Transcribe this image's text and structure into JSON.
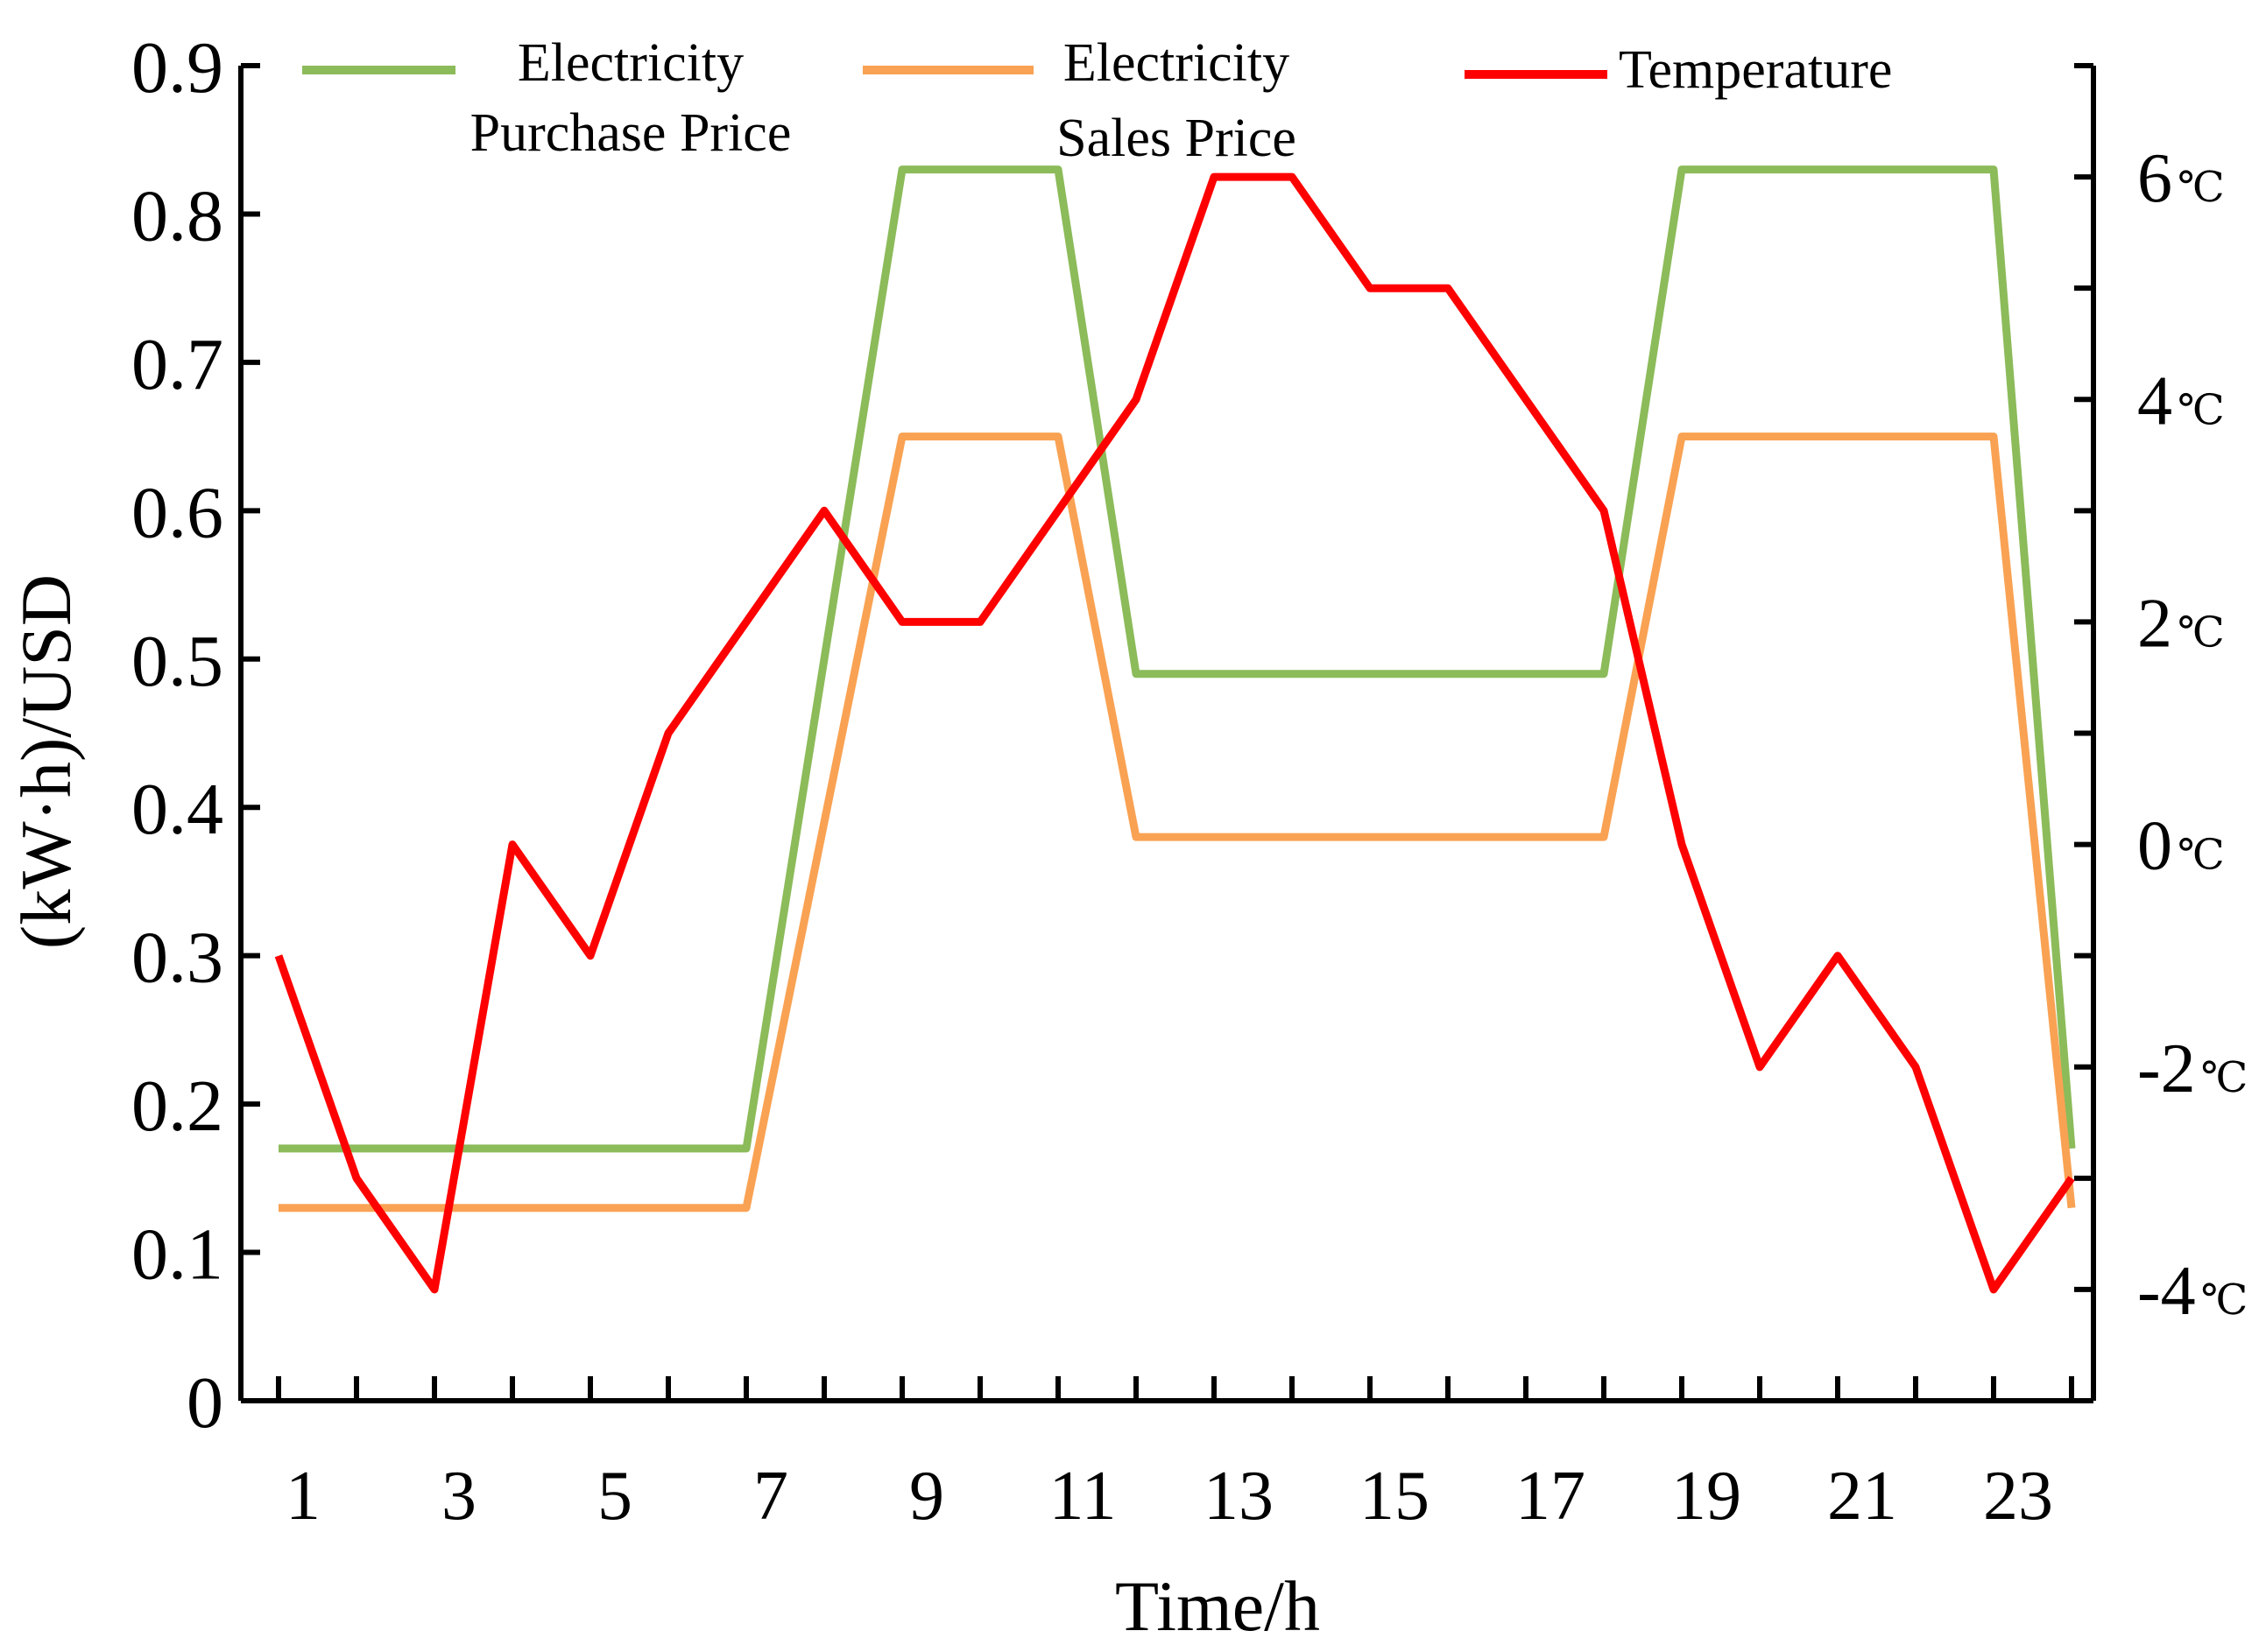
{
  "chart_data": {
    "type": "line",
    "title": "",
    "xlabel": "Time/h",
    "ylabel": "(kW·h)/USD",
    "x": [
      1,
      2,
      3,
      4,
      5,
      6,
      7,
      8,
      9,
      10,
      11,
      12,
      13,
      14,
      15,
      16,
      17,
      18,
      19,
      20,
      21,
      22,
      23,
      24
    ],
    "x_tick_labels": [
      "1",
      "3",
      "5",
      "7",
      "9",
      "11",
      "13",
      "15",
      "17",
      "19",
      "21",
      "23"
    ],
    "y_ticks": [
      "0",
      "0.1",
      "0.2",
      "0.3",
      "0.4",
      "0.5",
      "0.6",
      "0.7",
      "0.8",
      "0.9"
    ],
    "ylim": [
      0,
      0.9
    ],
    "y2_ticks": [
      "-4",
      "-2",
      "0",
      "2",
      "4",
      "6"
    ],
    "y2_unit": "℃",
    "y2lim": [
      -5,
      7
    ],
    "legend_position": "top",
    "series": [
      {
        "name": "Electricity Purchase Price",
        "legend_lines": [
          "Electricity",
          "Purchase Price"
        ],
        "axis": "left",
        "color": "#8CBB5A",
        "values": [
          0.17,
          0.17,
          0.17,
          0.17,
          0.17,
          0.17,
          0.17,
          0.5,
          0.83,
          0.83,
          0.83,
          0.49,
          0.49,
          0.49,
          0.49,
          0.49,
          0.49,
          0.49,
          0.83,
          0.83,
          0.83,
          0.83,
          0.83,
          0.17
        ]
      },
      {
        "name": "Electricity Sales Price",
        "legend_lines": [
          "Electricity",
          "Sales Price"
        ],
        "axis": "left",
        "color": "#F9A253",
        "values": [
          0.13,
          0.13,
          0.13,
          0.13,
          0.13,
          0.13,
          0.13,
          0.39,
          0.65,
          0.65,
          0.65,
          0.38,
          0.38,
          0.38,
          0.38,
          0.38,
          0.38,
          0.38,
          0.65,
          0.65,
          0.65,
          0.65,
          0.65,
          0.13
        ]
      },
      {
        "name": "Temperature",
        "legend_lines": [
          "Temperature"
        ],
        "axis": "right",
        "color": "#FF0000",
        "values": [
          -1,
          -3,
          -4,
          0,
          -1,
          1,
          2,
          3,
          2,
          2,
          3,
          4,
          6,
          6,
          5,
          5,
          4,
          3,
          0,
          -2,
          -1,
          -2,
          -4,
          -3
        ]
      }
    ]
  }
}
